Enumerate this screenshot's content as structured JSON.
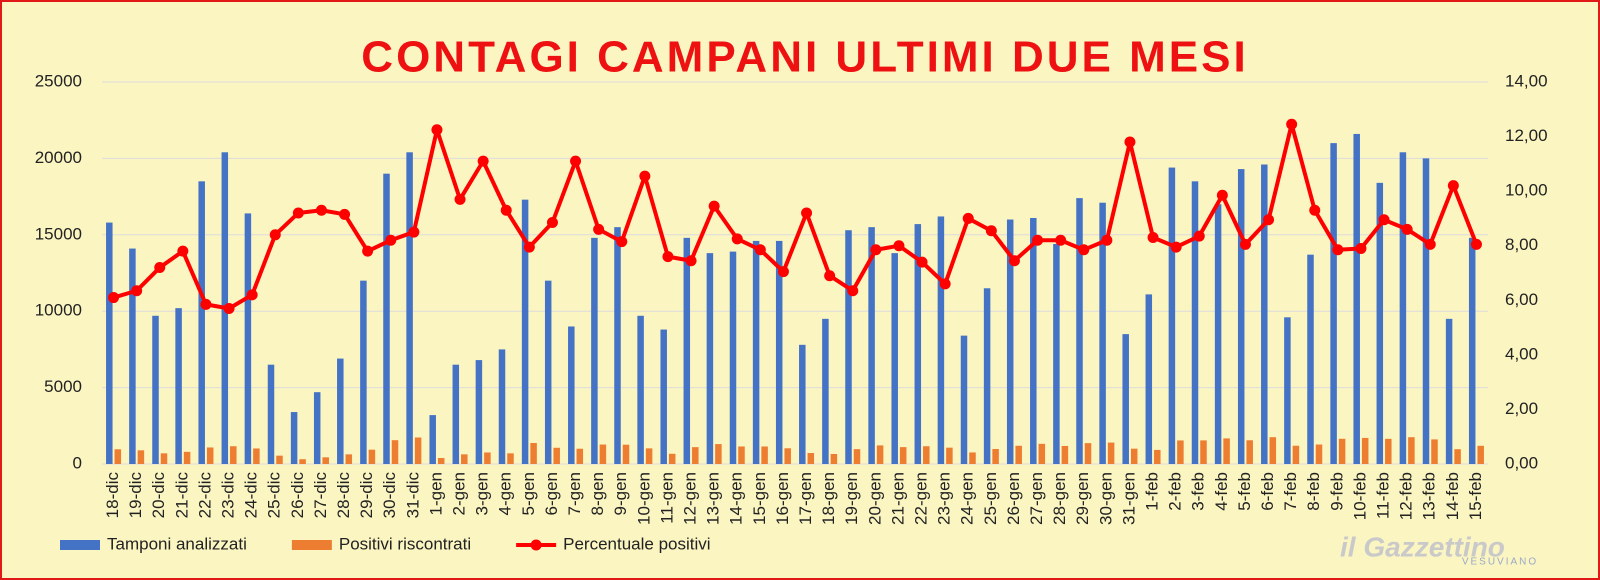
{
  "chart_data": {
    "type": "bar-line",
    "title": "CONTAGI CAMPANI ULTIMI DUE MESI",
    "categories": [
      "18-dic",
      "19-dic",
      "20-dic",
      "21-dic",
      "22-dic",
      "23-dic",
      "24-dic",
      "25-dic",
      "26-dic",
      "27-dic",
      "28-dic",
      "29-dic",
      "30-dic",
      "31-dic",
      "1-gen",
      "2-gen",
      "3-gen",
      "4-gen",
      "5-gen",
      "6-gen",
      "7-gen",
      "8-gen",
      "9-gen",
      "10-gen",
      "11-gen",
      "12-gen",
      "13-gen",
      "14-gen",
      "15-gen",
      "16-gen",
      "17-gen",
      "18-gen",
      "19-gen",
      "20-gen",
      "21-gen",
      "22-gen",
      "23-gen",
      "24-gen",
      "25-gen",
      "26-gen",
      "27-gen",
      "28-gen",
      "29-gen",
      "30-gen",
      "31-gen",
      "1-feb",
      "2-feb",
      "3-feb",
      "4-feb",
      "5-feb",
      "6-feb",
      "7-feb",
      "8-feb",
      "9-feb",
      "10-feb",
      "11-feb",
      "12-feb",
      "13-feb",
      "14-feb",
      "15-feb"
    ],
    "series": [
      {
        "name": "Tamponi analizzati",
        "color": "#4472c4",
        "type": "bar",
        "values": [
          15800,
          14100,
          9700,
          10200,
          18500,
          20400,
          16400,
          6500,
          3400,
          4700,
          6900,
          12000,
          19000,
          20400,
          3200,
          6500,
          6800,
          7500,
          17300,
          12000,
          9000,
          14800,
          15500,
          9700,
          8800,
          14800,
          13800,
          13900,
          14600,
          14600,
          7800,
          9500,
          15300,
          15500,
          13800,
          15700,
          16200,
          8400,
          11500,
          16000,
          16100,
          14400,
          17400,
          17100,
          8500,
          11100,
          19400,
          18500,
          17000,
          19300,
          19600,
          9600,
          13700,
          21000,
          21600,
          18400,
          20400,
          20000,
          9500,
          14800
        ]
      },
      {
        "name": "Positivi riscontrati",
        "color": "#ed7d31",
        "type": "bar",
        "values": [
          964,
          895,
          698,
          796,
          1082,
          1163,
          1017,
          546,
          313,
          437,
          631,
          936,
          1558,
          1734,
          392,
          631,
          755,
          698,
          1375,
          1062,
          999,
          1273,
          1263,
          1023,
          669,
          1103,
          1304,
          1147,
          1146,
          1029,
          718,
          656,
          972,
          1217,
          1104,
          1162,
          1069,
          756,
          983,
          1192,
          1320,
          1181,
          1366,
          1402,
          1003,
          921,
          1542,
          1545,
          1675,
          1554,
          1754,
          1195,
          1274,
          1649,
          1706,
          1647,
          1754,
          1610,
          969,
          1191
        ]
      },
      {
        "name": "Percentuale positivi",
        "color": "#ff0000",
        "type": "line",
        "axis": "y2",
        "values": [
          6.1,
          6.35,
          7.2,
          7.8,
          5.85,
          5.7,
          6.2,
          8.4,
          9.2,
          9.3,
          9.15,
          7.8,
          8.2,
          8.5,
          12.25,
          9.7,
          11.1,
          9.3,
          7.95,
          8.85,
          11.1,
          8.6,
          8.15,
          10.55,
          7.6,
          7.45,
          9.45,
          8.25,
          7.85,
          7.05,
          9.2,
          6.9,
          6.35,
          7.85,
          8.0,
          7.4,
          6.6,
          9.0,
          8.55,
          7.45,
          8.2,
          8.2,
          7.85,
          8.2,
          11.8,
          8.3,
          7.95,
          8.35,
          9.85,
          8.05,
          8.95,
          12.45,
          9.3,
          7.85,
          7.9,
          8.95,
          8.6,
          8.05,
          10.2,
          8.05
        ]
      }
    ],
    "ylim": [
      0,
      25000
    ],
    "yticks": [
      0,
      5000,
      10000,
      15000,
      20000,
      25000
    ],
    "y2lim": [
      0,
      14
    ],
    "y2ticks": [
      {
        "value": 0,
        "label": "0,00"
      },
      {
        "value": 2,
        "label": "2,00"
      },
      {
        "value": 4,
        "label": "4,00"
      },
      {
        "value": 6,
        "label": "6,00"
      },
      {
        "value": 8,
        "label": "8,00"
      },
      {
        "value": 10,
        "label": "10,00"
      },
      {
        "value": 12,
        "label": "12,00"
      },
      {
        "value": 14,
        "label": "14,00"
      }
    ],
    "grid": true,
    "legend": "bottom",
    "logo": {
      "name": "il Gazzettino",
      "sub": "VESUVIANO"
    }
  }
}
